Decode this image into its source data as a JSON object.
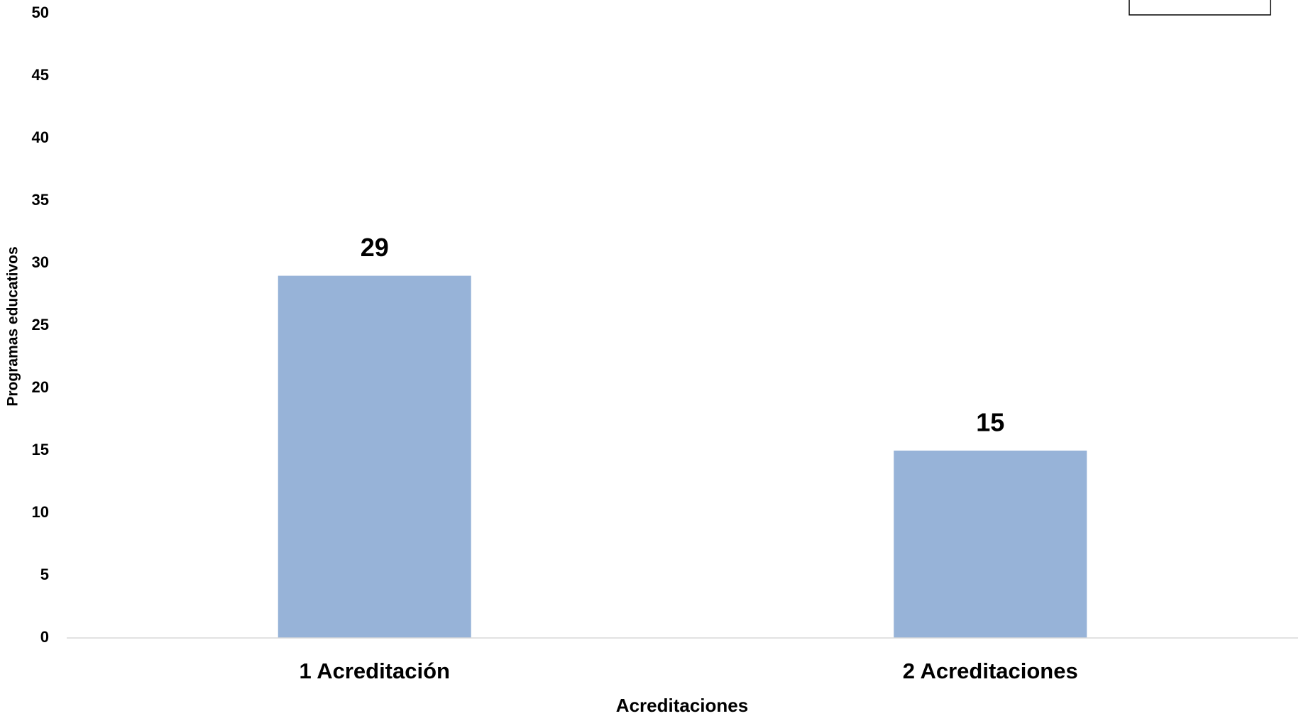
{
  "chart_data": {
    "type": "bar",
    "categories": [
      "1 Acreditación",
      "2 Acreditaciones"
    ],
    "values": [
      29,
      15
    ],
    "color": "#97b3d8",
    "xlabel": "Acreditaciones",
    "ylabel": "Programas educativos",
    "ylim": [
      0,
      50
    ],
    "yticks": [
      0,
      5,
      10,
      15,
      20,
      25,
      30,
      35,
      40,
      45,
      50
    ],
    "grid": false
  }
}
